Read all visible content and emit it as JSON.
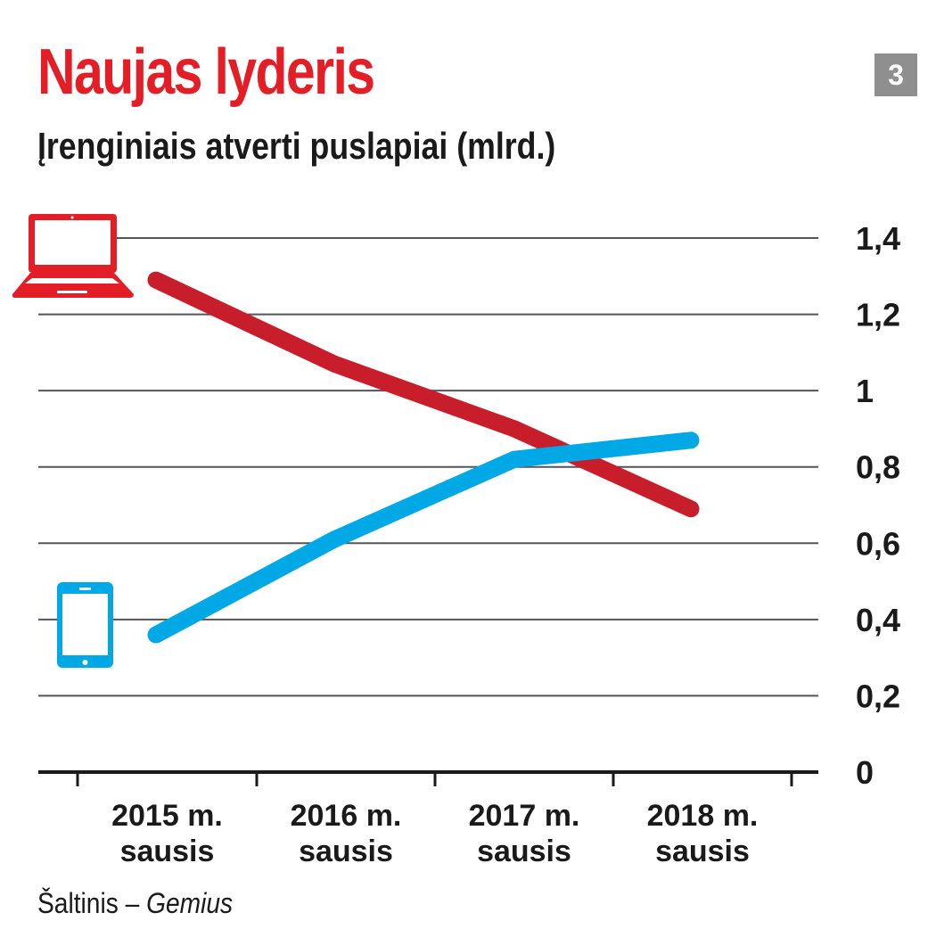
{
  "chart_data": {
    "type": "line",
    "title": "Naujas lyderis",
    "subtitle": "Įrenginiais atverti puslapiai (mlrd.)",
    "badge": "3",
    "categories": [
      [
        "2015 m.",
        "sausis"
      ],
      [
        "2016 m.",
        "sausis"
      ],
      [
        "2017 m.",
        "sausis"
      ],
      [
        "2018 m.",
        "sausis"
      ]
    ],
    "series": [
      {
        "name": "computer",
        "icon": "laptop-icon",
        "color": "#c81e2b",
        "values": [
          1.29,
          1.07,
          0.9,
          0.69
        ]
      },
      {
        "name": "mobile",
        "icon": "tablet-icon",
        "color": "#00a9e6",
        "values": [
          0.36,
          0.61,
          0.82,
          0.87
        ]
      }
    ],
    "yticks": [
      "0",
      "0,2",
      "0,4",
      "0,6",
      "0,8",
      "1",
      "1,2",
      "1,4"
    ],
    "ylim": [
      0,
      1.4
    ],
    "grid": true,
    "source_label": "Šaltinis – ",
    "source_name": "Gemius"
  }
}
